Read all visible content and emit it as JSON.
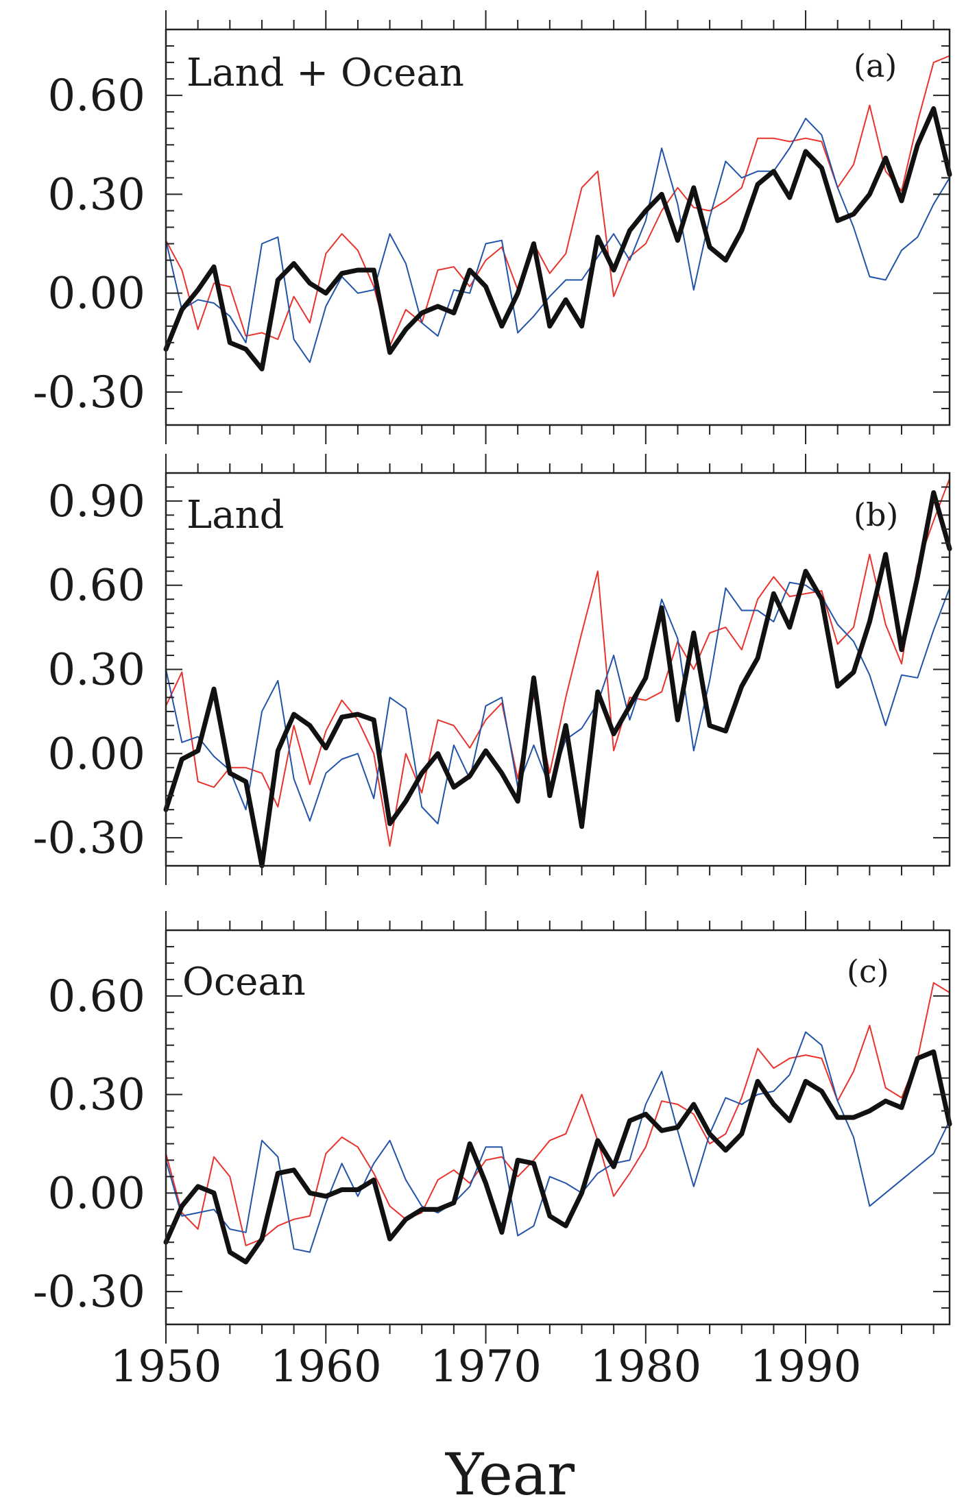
{
  "figure": {
    "xlabel": "Year",
    "colors": {
      "black": "#111111",
      "red": "#e8322b",
      "blue": "#2153a9",
      "axis": "#222222"
    }
  },
  "chart_data": [
    {
      "type": "line",
      "title": "Land + Ocean",
      "tag": "(a)",
      "xlim": [
        1950,
        1999
      ],
      "ylim": [
        -0.4,
        0.8
      ],
      "yticks": [
        -0.3,
        0.0,
        0.3,
        0.6
      ],
      "ytick_labels": [
        "-0.30",
        "0.00",
        "0.30",
        "0.60"
      ],
      "xticks": [
        1950,
        1960,
        1970,
        1980,
        1990
      ],
      "xtick_labels": [],
      "grid": false,
      "legend": "none",
      "x": [
        1950,
        1951,
        1952,
        1953,
        1954,
        1955,
        1956,
        1957,
        1958,
        1959,
        1960,
        1961,
        1962,
        1963,
        1964,
        1965,
        1966,
        1967,
        1968,
        1969,
        1970,
        1971,
        1972,
        1973,
        1974,
        1975,
        1976,
        1977,
        1978,
        1979,
        1980,
        1981,
        1982,
        1983,
        1984,
        1985,
        1986,
        1987,
        1988,
        1989,
        1990,
        1991,
        1992,
        1993,
        1994,
        1995,
        1996,
        1997,
        1998,
        1999
      ],
      "series": [
        {
          "color": "red",
          "width": 2,
          "values": [
            0.16,
            0.07,
            -0.11,
            0.03,
            0.02,
            -0.13,
            -0.12,
            -0.14,
            -0.01,
            -0.09,
            0.12,
            0.18,
            0.13,
            0.02,
            -0.16,
            -0.05,
            -0.09,
            0.07,
            0.08,
            0.02,
            0.1,
            0.14,
            0.01,
            0.15,
            0.06,
            0.12,
            0.32,
            0.37,
            -0.01,
            0.11,
            0.15,
            0.25,
            0.32,
            0.26,
            0.25,
            0.28,
            0.32,
            0.47,
            0.47,
            0.46,
            0.47,
            0.46,
            0.32,
            0.39,
            0.57,
            0.37,
            0.31,
            0.52,
            0.7,
            0.72
          ]
        },
        {
          "color": "blue",
          "width": 2,
          "values": [
            0.16,
            -0.05,
            -0.02,
            -0.03,
            -0.07,
            -0.15,
            0.15,
            0.17,
            -0.14,
            -0.21,
            -0.04,
            0.05,
            0.0,
            0.01,
            0.18,
            0.09,
            -0.09,
            -0.13,
            0.01,
            0.0,
            0.15,
            0.16,
            -0.12,
            -0.07,
            -0.01,
            0.04,
            0.04,
            0.11,
            0.18,
            0.1,
            0.22,
            0.44,
            0.27,
            0.01,
            0.23,
            0.4,
            0.35,
            0.37,
            0.37,
            0.44,
            0.53,
            0.48,
            0.32,
            0.2,
            0.05,
            0.04,
            0.13,
            0.17,
            0.27,
            0.35
          ]
        },
        {
          "color": "black",
          "width": 7,
          "values": [
            -0.17,
            -0.05,
            0.01,
            0.08,
            -0.15,
            -0.17,
            -0.23,
            0.04,
            0.09,
            0.03,
            0.0,
            0.06,
            0.07,
            0.07,
            -0.18,
            -0.11,
            -0.06,
            -0.04,
            -0.06,
            0.07,
            0.02,
            -0.1,
            0.0,
            0.15,
            -0.1,
            -0.02,
            -0.1,
            0.17,
            0.07,
            0.19,
            0.25,
            0.3,
            0.16,
            0.32,
            0.14,
            0.1,
            0.19,
            0.33,
            0.37,
            0.29,
            0.43,
            0.38,
            0.22,
            0.24,
            0.3,
            0.41,
            0.28,
            0.45,
            0.56,
            0.36
          ]
        }
      ]
    },
    {
      "type": "line",
      "title": "Land",
      "tag": "(b)",
      "xlim": [
        1950,
        1999
      ],
      "ylim": [
        -0.4,
        1.0
      ],
      "yticks": [
        -0.3,
        0.0,
        0.3,
        0.6,
        0.9
      ],
      "ytick_labels": [
        "-0.30",
        "0.00",
        "0.30",
        "0.60",
        "0.90"
      ],
      "xticks": [
        1950,
        1960,
        1970,
        1980,
        1990
      ],
      "xtick_labels": [],
      "grid": false,
      "legend": "none",
      "x": [
        1950,
        1951,
        1952,
        1953,
        1954,
        1955,
        1956,
        1957,
        1958,
        1959,
        1960,
        1961,
        1962,
        1963,
        1964,
        1965,
        1966,
        1967,
        1968,
        1969,
        1970,
        1971,
        1972,
        1973,
        1974,
        1975,
        1976,
        1977,
        1978,
        1979,
        1980,
        1981,
        1982,
        1983,
        1984,
        1985,
        1986,
        1987,
        1988,
        1989,
        1990,
        1991,
        1992,
        1993,
        1994,
        1995,
        1996,
        1997,
        1998,
        1999
      ],
      "series": [
        {
          "color": "red",
          "width": 2,
          "values": [
            0.17,
            0.29,
            -0.1,
            -0.12,
            -0.05,
            -0.05,
            -0.07,
            -0.19,
            0.1,
            -0.11,
            0.08,
            0.19,
            0.12,
            0.0,
            -0.33,
            0.0,
            -0.14,
            0.12,
            0.1,
            0.02,
            0.12,
            0.18,
            -0.09,
            0.21,
            -0.07,
            0.2,
            0.43,
            0.65,
            0.01,
            0.2,
            0.19,
            0.22,
            0.4,
            0.3,
            0.43,
            0.45,
            0.37,
            0.55,
            0.63,
            0.56,
            0.57,
            0.58,
            0.39,
            0.45,
            0.71,
            0.46,
            0.32,
            0.67,
            0.83,
            0.98
          ]
        },
        {
          "color": "blue",
          "width": 2,
          "values": [
            0.3,
            0.04,
            0.06,
            -0.01,
            -0.06,
            -0.2,
            0.15,
            0.26,
            -0.09,
            -0.24,
            -0.07,
            -0.02,
            0.0,
            -0.16,
            0.2,
            0.16,
            -0.19,
            -0.25,
            0.03,
            -0.09,
            0.17,
            0.2,
            -0.12,
            0.03,
            -0.12,
            0.05,
            0.09,
            0.18,
            0.35,
            0.12,
            0.29,
            0.55,
            0.41,
            0.01,
            0.26,
            0.59,
            0.51,
            0.51,
            0.47,
            0.61,
            0.6,
            0.56,
            0.46,
            0.4,
            0.28,
            0.1,
            0.28,
            0.27,
            0.44,
            0.59
          ]
        },
        {
          "color": "black",
          "width": 7,
          "values": [
            -0.2,
            -0.02,
            0.01,
            0.23,
            -0.07,
            -0.1,
            -0.4,
            0.01,
            0.14,
            0.1,
            0.02,
            0.13,
            0.14,
            0.12,
            -0.25,
            -0.17,
            -0.07,
            -0.0,
            -0.12,
            -0.08,
            0.01,
            -0.07,
            -0.17,
            0.27,
            -0.15,
            0.1,
            -0.26,
            0.22,
            0.07,
            0.17,
            0.27,
            0.52,
            0.12,
            0.43,
            0.1,
            0.08,
            0.24,
            0.34,
            0.57,
            0.45,
            0.65,
            0.55,
            0.24,
            0.29,
            0.47,
            0.71,
            0.37,
            0.63,
            0.93,
            0.73
          ]
        }
      ]
    },
    {
      "type": "line",
      "title": "Ocean",
      "tag": "(c)",
      "xlim": [
        1950,
        1999
      ],
      "ylim": [
        -0.4,
        0.8
      ],
      "yticks": [
        -0.3,
        0.0,
        0.3,
        0.6
      ],
      "ytick_labels": [
        "-0.30",
        "0.00",
        "0.30",
        "0.60"
      ],
      "xticks": [
        1950,
        1960,
        1970,
        1980,
        1990
      ],
      "xtick_labels": [
        "1950",
        "1960",
        "1970",
        "1980",
        "1990"
      ],
      "grid": false,
      "legend": "none",
      "x": [
        1950,
        1951,
        1952,
        1953,
        1954,
        1955,
        1956,
        1957,
        1958,
        1959,
        1960,
        1961,
        1962,
        1963,
        1964,
        1965,
        1966,
        1967,
        1968,
        1969,
        1970,
        1971,
        1972,
        1973,
        1974,
        1975,
        1976,
        1977,
        1978,
        1979,
        1980,
        1981,
        1982,
        1983,
        1984,
        1985,
        1986,
        1987,
        1988,
        1989,
        1990,
        1991,
        1992,
        1993,
        1994,
        1995,
        1996,
        1997,
        1998,
        1999
      ],
      "series": [
        {
          "color": "red",
          "width": 2,
          "values": [
            0.12,
            -0.06,
            -0.11,
            0.11,
            0.05,
            -0.16,
            -0.14,
            -0.1,
            -0.08,
            -0.07,
            0.12,
            0.17,
            0.14,
            0.06,
            -0.04,
            -0.08,
            -0.06,
            0.04,
            0.07,
            0.03,
            0.1,
            0.11,
            0.05,
            0.1,
            0.16,
            0.18,
            0.3,
            0.16,
            -0.01,
            0.06,
            0.14,
            0.28,
            0.27,
            0.24,
            0.15,
            0.18,
            0.29,
            0.44,
            0.38,
            0.41,
            0.42,
            0.41,
            0.28,
            0.37,
            0.51,
            0.32,
            0.29,
            0.41,
            0.64,
            0.61
          ]
        },
        {
          "color": "blue",
          "width": 2,
          "values": [
            0.1,
            -0.07,
            -0.06,
            -0.05,
            -0.11,
            -0.12,
            0.16,
            0.11,
            -0.17,
            -0.18,
            -0.03,
            0.09,
            -0.01,
            0.09,
            0.16,
            0.04,
            -0.04,
            -0.06,
            -0.03,
            0.02,
            0.14,
            0.14,
            -0.13,
            -0.1,
            0.05,
            0.03,
            0.0,
            0.06,
            0.09,
            0.1,
            0.27,
            0.37,
            0.19,
            0.02,
            0.18,
            0.29,
            0.27,
            0.3,
            0.31,
            0.36,
            0.49,
            0.45,
            0.28,
            0.17,
            -0.04,
            0.0,
            0.04,
            0.08,
            0.12,
            0.22
          ]
        },
        {
          "color": "black",
          "width": 7,
          "values": [
            -0.15,
            -0.04,
            0.02,
            0.0,
            -0.18,
            -0.21,
            -0.14,
            0.06,
            0.07,
            0.0,
            -0.01,
            0.01,
            0.01,
            0.04,
            -0.14,
            -0.08,
            -0.05,
            -0.05,
            -0.03,
            0.15,
            0.03,
            -0.12,
            0.1,
            0.09,
            -0.07,
            -0.1,
            0.0,
            0.16,
            0.08,
            0.22,
            0.24,
            0.19,
            0.2,
            0.27,
            0.18,
            0.13,
            0.18,
            0.34,
            0.27,
            0.22,
            0.34,
            0.31,
            0.23,
            0.23,
            0.25,
            0.28,
            0.26,
            0.41,
            0.43,
            0.21
          ]
        }
      ]
    }
  ]
}
